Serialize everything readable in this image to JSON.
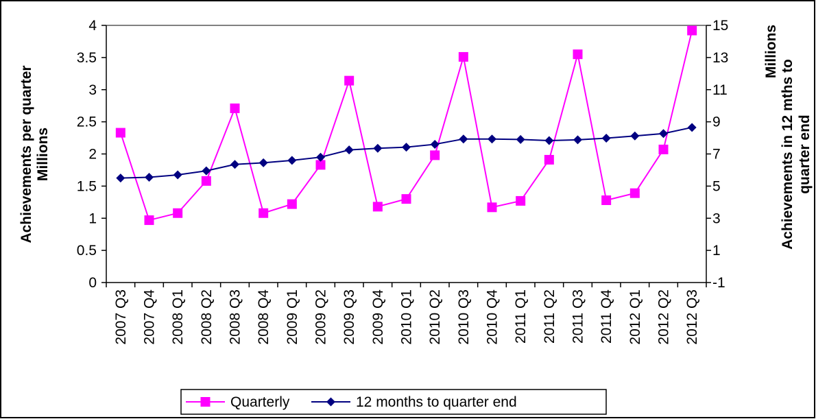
{
  "chart_data": {
    "type": "line",
    "categories": [
      "2007 Q3",
      "2007 Q4",
      "2008 Q1",
      "2008 Q2",
      "2008 Q3",
      "2008 Q4",
      "2009 Q1",
      "2009 Q2",
      "2009 Q3",
      "2009 Q4",
      "2010 Q1",
      "2010 Q2",
      "2010 Q3",
      "2010 Q4",
      "2011 Q1",
      "2011 Q2",
      "2011 Q3",
      "2011 Q4",
      "2012 Q1",
      "2012 Q2",
      "2012 Q3"
    ],
    "series": [
      {
        "name": "Quarterly",
        "axis": "left",
        "color": "#ff00ff",
        "marker": "square",
        "values": [
          2.33,
          0.97,
          1.08,
          1.58,
          2.71,
          1.08,
          1.22,
          1.83,
          3.14,
          1.18,
          1.3,
          1.98,
          3.51,
          1.17,
          1.27,
          1.91,
          3.55,
          1.28,
          1.39,
          2.07,
          3.92
        ]
      },
      {
        "name": "12 months to quarter end",
        "axis": "right",
        "color": "#000080",
        "marker": "diamond",
        "values": [
          5.5,
          5.55,
          5.7,
          5.95,
          6.35,
          6.45,
          6.6,
          6.8,
          7.25,
          7.35,
          7.42,
          7.6,
          7.93,
          7.93,
          7.9,
          7.83,
          7.88,
          7.98,
          8.12,
          8.27,
          8.65
        ]
      }
    ],
    "left_axis": {
      "title_line1": "Achievements per quarter",
      "title_line2": "Millions",
      "ylim": [
        0,
        4
      ],
      "ticks": [
        "0",
        "0.5",
        "1",
        "1.5",
        "2",
        "2.5",
        "3",
        "3.5",
        "4"
      ]
    },
    "right_axis": {
      "title_line1": "Millions",
      "title_line2": "Achievements in 12 mths to",
      "title_line3": "quarter end",
      "ylim": [
        -1,
        15
      ],
      "ticks": [
        "-1",
        "1",
        "3",
        "5",
        "7",
        "9",
        "11",
        "13",
        "15"
      ]
    },
    "legend": {
      "position": "bottom",
      "entries": [
        "Quarterly",
        "12 months to quarter end"
      ]
    },
    "grid": false
  }
}
